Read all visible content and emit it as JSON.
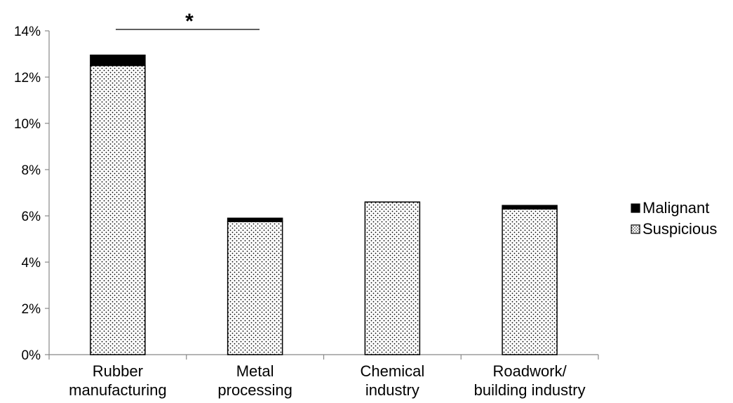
{
  "chart_data": {
    "type": "bar",
    "stacked": true,
    "categories": [
      [
        "Rubber",
        "manufacturing"
      ],
      [
        "Metal",
        "processing"
      ],
      [
        "Chemical",
        "industry"
      ],
      [
        "Roadwork/",
        "building industry"
      ]
    ],
    "series": [
      {
        "name": "Suspicious",
        "values": [
          12.5,
          5.75,
          6.6,
          6.3
        ],
        "color": "#ffffff",
        "pattern": "dots"
      },
      {
        "name": "Malignant",
        "values": [
          0.45,
          0.15,
          0.0,
          0.15
        ],
        "color": "#000000"
      }
    ],
    "legend_order": [
      "Malignant",
      "Suspicious"
    ],
    "legend_position": "right",
    "ylim": [
      0,
      14
    ],
    "yticks": [
      "0%",
      "2%",
      "4%",
      "6%",
      "8%",
      "10%",
      "12%",
      "14%"
    ],
    "ytick_values": [
      0,
      2,
      4,
      6,
      8,
      10,
      12,
      14
    ],
    "grid": false,
    "annotation": {
      "text": "*",
      "from_category": 0,
      "to_category": 1,
      "level": 14
    }
  }
}
